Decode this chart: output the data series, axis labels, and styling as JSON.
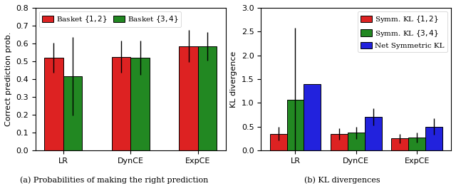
{
  "left": {
    "categories": [
      "LR",
      "DynCE",
      "ExpCE"
    ],
    "bar1_values": [
      0.52,
      0.525,
      0.585
    ],
    "bar1_errors": [
      0.085,
      0.09,
      0.09
    ],
    "bar2_values": [
      0.415,
      0.52,
      0.585
    ],
    "bar2_errors": [
      0.22,
      0.095,
      0.08
    ],
    "bar1_color": "#dd2222",
    "bar2_color": "#228822",
    "bar1_label": "Basket $\\{1,2\\}$",
    "bar2_label": "Basket $\\{3,4\\}$",
    "ylabel": "Correct prediction prob.",
    "ylim": [
      0.0,
      0.8
    ],
    "yticks": [
      0.0,
      0.1,
      0.2,
      0.3,
      0.4,
      0.5,
      0.6,
      0.7,
      0.8
    ],
    "caption": "(a) Probabilities of making the right prediction"
  },
  "right": {
    "categories": [
      "LR",
      "DynCE",
      "ExpCE"
    ],
    "bar1_values": [
      0.35,
      0.35,
      0.25
    ],
    "bar1_errors": [
      0.14,
      0.12,
      0.1
    ],
    "bar2_values": [
      1.06,
      0.37,
      0.27
    ],
    "bar2_errors": [
      1.52,
      0.13,
      0.11
    ],
    "bar3_values": [
      1.4,
      0.7,
      0.5
    ],
    "bar3_errors": [
      0.0,
      0.18,
      0.17
    ],
    "bar1_color": "#dd2222",
    "bar2_color": "#228822",
    "bar3_color": "#2222dd",
    "bar1_label": "Symm. KL $\\{1,2\\}$",
    "bar2_label": "Symm. KL $\\{3,4\\}$",
    "bar3_label": "Net Symmetric KL",
    "ylabel": "KL divergence",
    "ylim": [
      0.0,
      3.0
    ],
    "yticks": [
      0.0,
      0.5,
      1.0,
      1.5,
      2.0,
      2.5,
      3.0
    ],
    "caption": "(b) KL divergences"
  },
  "caption_fontsize": 8,
  "tick_label_fontsize": 8,
  "axis_label_fontsize": 8,
  "legend_fontsize": 7.5,
  "bar_width": 0.28,
  "background_color": "#ffffff"
}
